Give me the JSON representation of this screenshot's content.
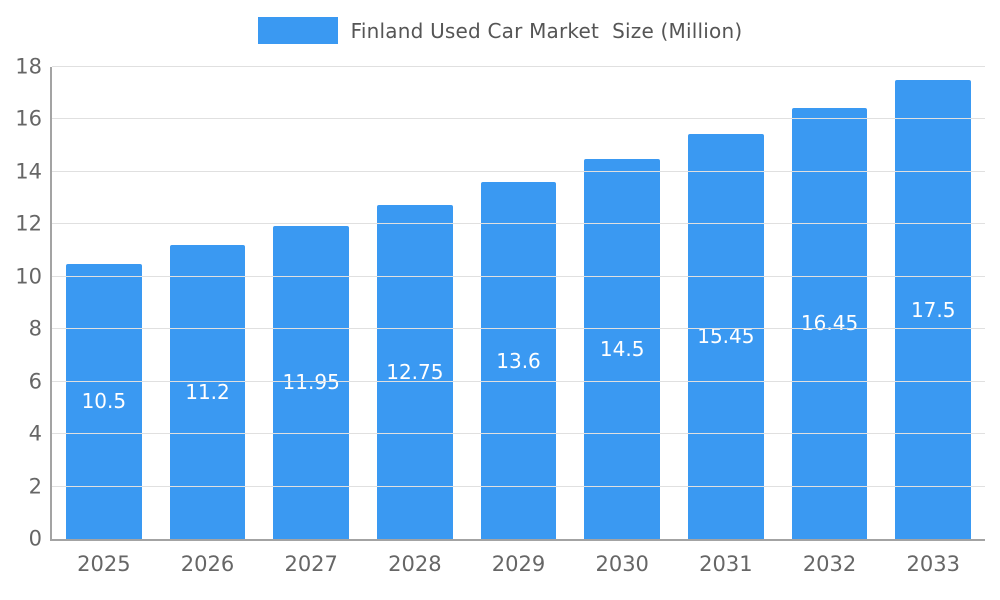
{
  "chart_data": {
    "type": "bar",
    "title": "Finland Used Car Market  Size (Million)",
    "categories": [
      "2025",
      "2026",
      "2027",
      "2028",
      "2029",
      "2030",
      "2031",
      "2032",
      "2033"
    ],
    "values": [
      10.5,
      11.2,
      11.95,
      12.75,
      13.6,
      14.5,
      15.45,
      16.45,
      17.5
    ],
    "ylim": [
      0,
      18
    ],
    "ytick_step": 2,
    "grid": true,
    "legend_position": "top",
    "bar_color": "#3a99f2",
    "value_label_color": "#ffffff",
    "title_color": "#555555",
    "tick_label_color": "#666666",
    "gridline_color": "#e0e0e0",
    "axis_color": "#a3a3a3",
    "background_color": "#ffffff"
  }
}
